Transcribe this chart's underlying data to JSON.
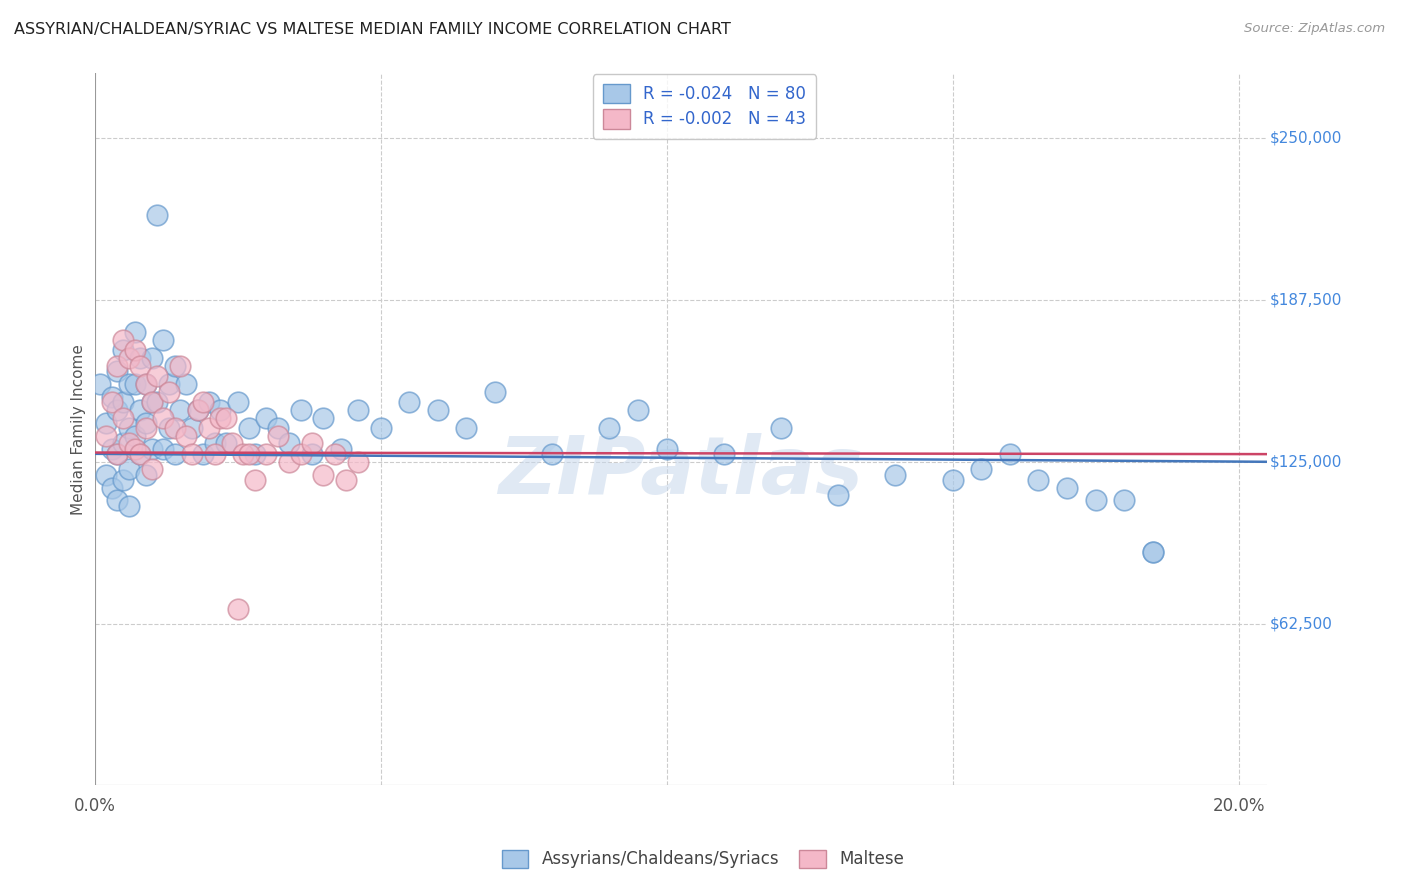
{
  "title": "ASSYRIAN/CHALDEAN/SYRIAC VS MALTESE MEDIAN FAMILY INCOME CORRELATION CHART",
  "source": "Source: ZipAtlas.com",
  "ylabel": "Median Family Income",
  "watermark": "ZIPatlas",
  "yticks": [
    62500,
    125000,
    187500,
    250000
  ],
  "ytick_labels": [
    "$62,500",
    "$125,000",
    "$187,500",
    "$250,000"
  ],
  "xlim": [
    0.0,
    0.205
  ],
  "ylim": [
    0,
    275000
  ],
  "legend1_label": "R = -0.024   N = 80",
  "legend2_label": "R = -0.002   N = 43",
  "blue_face": "#a8c8e8",
  "blue_edge": "#6699cc",
  "pink_face": "#f4b8c8",
  "pink_edge": "#cc8899",
  "line_blue": "#4477bb",
  "line_pink": "#cc4466",
  "blue_scatter_x": [
    0.001,
    0.002,
    0.002,
    0.003,
    0.003,
    0.003,
    0.004,
    0.004,
    0.004,
    0.004,
    0.005,
    0.005,
    0.005,
    0.005,
    0.006,
    0.006,
    0.006,
    0.006,
    0.007,
    0.007,
    0.007,
    0.008,
    0.008,
    0.008,
    0.009,
    0.009,
    0.009,
    0.01,
    0.01,
    0.01,
    0.011,
    0.011,
    0.012,
    0.012,
    0.013,
    0.013,
    0.014,
    0.014,
    0.015,
    0.016,
    0.017,
    0.018,
    0.019,
    0.02,
    0.021,
    0.022,
    0.023,
    0.025,
    0.027,
    0.028,
    0.03,
    0.032,
    0.034,
    0.036,
    0.038,
    0.04,
    0.043,
    0.046,
    0.05,
    0.055,
    0.06,
    0.065,
    0.07,
    0.08,
    0.09,
    0.095,
    0.1,
    0.11,
    0.12,
    0.13,
    0.14,
    0.15,
    0.16,
    0.17,
    0.18,
    0.185,
    0.155,
    0.165,
    0.175,
    0.185
  ],
  "blue_scatter_y": [
    155000,
    140000,
    120000,
    150000,
    130000,
    115000,
    160000,
    145000,
    128000,
    110000,
    168000,
    148000,
    132000,
    118000,
    155000,
    138000,
    122000,
    108000,
    175000,
    155000,
    135000,
    165000,
    145000,
    128000,
    155000,
    140000,
    120000,
    165000,
    148000,
    130000,
    220000,
    148000,
    172000,
    130000,
    155000,
    138000,
    162000,
    128000,
    145000,
    155000,
    138000,
    145000,
    128000,
    148000,
    132000,
    145000,
    132000,
    148000,
    138000,
    128000,
    142000,
    138000,
    132000,
    145000,
    128000,
    142000,
    130000,
    145000,
    138000,
    148000,
    145000,
    138000,
    152000,
    128000,
    138000,
    145000,
    130000,
    128000,
    138000,
    112000,
    120000,
    118000,
    128000,
    115000,
    110000,
    90000,
    122000,
    118000,
    110000,
    90000
  ],
  "pink_scatter_x": [
    0.002,
    0.003,
    0.004,
    0.004,
    0.005,
    0.005,
    0.006,
    0.006,
    0.007,
    0.007,
    0.008,
    0.008,
    0.009,
    0.009,
    0.01,
    0.01,
    0.011,
    0.012,
    0.013,
    0.014,
    0.015,
    0.016,
    0.017,
    0.018,
    0.019,
    0.02,
    0.021,
    0.022,
    0.024,
    0.026,
    0.028,
    0.03,
    0.032,
    0.034,
    0.036,
    0.038,
    0.04,
    0.042,
    0.044,
    0.046,
    0.025,
    0.027,
    0.023
  ],
  "pink_scatter_y": [
    135000,
    148000,
    162000,
    128000,
    172000,
    142000,
    165000,
    132000,
    168000,
    130000,
    162000,
    128000,
    155000,
    138000,
    148000,
    122000,
    158000,
    142000,
    152000,
    138000,
    162000,
    135000,
    128000,
    145000,
    148000,
    138000,
    128000,
    142000,
    132000,
    128000,
    118000,
    128000,
    135000,
    125000,
    128000,
    132000,
    120000,
    128000,
    118000,
    125000,
    68000,
    128000,
    142000
  ]
}
